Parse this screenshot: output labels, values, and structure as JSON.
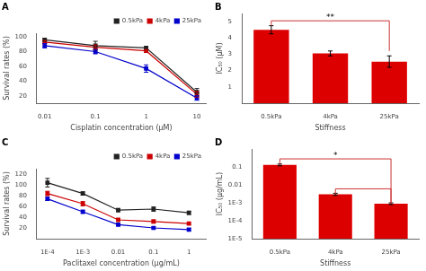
{
  "chart_data": [
    {
      "type": "line",
      "title": "A",
      "xlabel": "Cisplatin concentration (μM)",
      "ylabel": "Survival rates (%)",
      "x": [
        0.01,
        0.1,
        1,
        10
      ],
      "series": [
        {
          "name": "0.5kPa",
          "color": "#222222",
          "marker": "square",
          "values": [
            96,
            88,
            85,
            25
          ],
          "yerr": [
            2,
            6,
            2,
            5
          ]
        },
        {
          "name": "4kPa",
          "color": "#cc0000",
          "marker": "square",
          "values": [
            93,
            86,
            81,
            22
          ],
          "yerr": [
            2,
            3,
            2,
            4
          ]
        },
        {
          "name": "25kPa",
          "color": "#0000cc",
          "marker": "square",
          "values": [
            88,
            80,
            57,
            17
          ],
          "yerr": [
            3,
            3,
            5,
            3
          ]
        }
      ],
      "log": "x",
      "xlim": [
        0.007,
        15
      ],
      "xticks": [
        0.01,
        0.1,
        1,
        10
      ],
      "ylim": [
        10,
        105
      ],
      "yticks": [
        20,
        40,
        60,
        80,
        100
      ],
      "grid": false,
      "legend": "upper right"
    },
    {
      "type": "bar",
      "title": "B",
      "xlabel": "Stiffness",
      "ylabel": "IC₅₀ (μM)",
      "categories": [
        "0.5kPa",
        "4kPa",
        "25kPa"
      ],
      "values": [
        4.5,
        3.05,
        2.55
      ],
      "yerr": [
        0.25,
        0.15,
        0.35
      ],
      "color": "#dd0000",
      "ylim": [
        0,
        5.5
      ],
      "yticks": [
        1,
        2,
        3,
        4,
        5
      ],
      "grid": false,
      "annotations": [
        {
          "text": "**",
          "from": "0.5kPa",
          "to": "25kPa",
          "y": 5.05,
          "y_from": 4.75,
          "y_to": 3.2,
          "color": "#cc3333"
        }
      ]
    },
    {
      "type": "line",
      "title": "C",
      "xlabel": "Paclitaxel concentration (μg/mL)",
      "ylabel": "Survival rates (%)",
      "x": [
        0.0001,
        0.001,
        0.01,
        0.1,
        1
      ],
      "series": [
        {
          "name": "0.5kPa",
          "color": "#222222",
          "marker": "square",
          "values": [
            104,
            84,
            53,
            55,
            48
          ],
          "yerr": [
            8,
            3,
            3,
            4,
            3
          ]
        },
        {
          "name": "4kPa",
          "color": "#cc0000",
          "marker": "square",
          "values": [
            84,
            65,
            35,
            32,
            28
          ],
          "yerr": [
            4,
            4,
            3,
            3,
            2
          ]
        },
        {
          "name": "25kPa",
          "color": "#0000cc",
          "marker": "square",
          "values": [
            74,
            50,
            26,
            20,
            17
          ],
          "yerr": [
            3,
            3,
            2,
            2,
            2
          ]
        }
      ],
      "log": "x",
      "xlim": [
        5e-05,
        3
      ],
      "xticks": [
        {
          "value": 0.0001,
          "label": "1E-4"
        },
        {
          "value": 0.001,
          "label": "1E-3"
        },
        0.01,
        0.1,
        1
      ],
      "ylim": [
        0,
        130
      ],
      "yticks": [
        20,
        40,
        60,
        80,
        100,
        120
      ],
      "grid": false,
      "legend": "upper right"
    },
    {
      "type": "bar",
      "title": "D",
      "xlabel": "Stiffness",
      "ylabel": "IC₅₀ (μg/mL)",
      "categories": [
        "0.5kPa",
        "4kPa",
        "25kPa"
      ],
      "values": [
        0.13,
        0.003,
        0.0009
      ],
      "yerr": [
        0.015,
        0.0004,
        0.0001
      ],
      "color": "#dd0000",
      "log": "y",
      "ylim": [
        1e-05,
        1.0
      ],
      "yticks": [
        {
          "value": 1e-05,
          "label": "1E-5"
        },
        {
          "value": 0.0001,
          "label": "1E-4"
        },
        {
          "value": 0.001,
          "label": "1E-3"
        },
        0.01,
        0.1
      ],
      "grid": false,
      "annotations": [
        {
          "text": "*",
          "from": "0.5kPa",
          "to": "25kPa",
          "y": 0.28,
          "y_from": 0.13,
          "y_to": 0.0009,
          "color": "#cc3333"
        },
        {
          "from": "4kPa",
          "to": "25kPa",
          "y": 0.006,
          "y_from": 0.003,
          "y_to": 0.0009,
          "color": "#cc3333"
        }
      ]
    }
  ]
}
